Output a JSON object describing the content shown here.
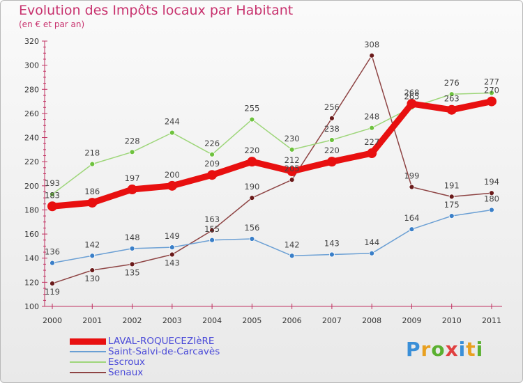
{
  "header": {
    "title": "Evolution des Impôts locaux par Habitant",
    "subtitle": "(en € et par an)"
  },
  "logo": {
    "text": "Proxiti",
    "colors": [
      "#3a8fd8",
      "#e8a020",
      "#5ab030",
      "#e04040",
      "#3a8fd8",
      "#e8a020",
      "#5ab030"
    ]
  },
  "chart_data": {
    "type": "line",
    "title": "Evolution des Impôts locaux par Habitant",
    "subtitle": "(en € et par an)",
    "xlabel": "",
    "ylabel": "",
    "ylim": [
      100,
      320
    ],
    "yticks": [
      100,
      120,
      140,
      160,
      180,
      200,
      220,
      240,
      260,
      280,
      300,
      320
    ],
    "grid": false,
    "legend_position": "bottom-left",
    "x": [
      "2000",
      "2001",
      "2002",
      "2003",
      "2004",
      "2005",
      "2006",
      "2007",
      "2008",
      "2009",
      "2010",
      "2011"
    ],
    "series": [
      {
        "name": "LAVAL-ROQUECEZIèRE",
        "color": "#e81010",
        "marker_color": "#e81010",
        "style": "bold",
        "values": [
          183,
          186,
          197,
          200,
          209,
          220,
          212,
          220,
          227,
          268,
          263,
          270
        ]
      },
      {
        "name": "Saint-Salvi-de-Carcavès",
        "color": "#6a9fd4",
        "marker_color": "#3a7fc8",
        "style": "thin",
        "values": [
          136,
          142,
          148,
          149,
          155,
          156,
          142,
          143,
          144,
          164,
          175,
          180
        ]
      },
      {
        "name": "Escroux",
        "color": "#9ed67a",
        "marker_color": "#6ec23e",
        "style": "thin",
        "values": [
          193,
          218,
          228,
          244,
          226,
          255,
          230,
          238,
          248,
          265,
          276,
          277
        ]
      },
      {
        "name": "Senaux",
        "color": "#8e4444",
        "marker_color": "#6a1a1a",
        "style": "thin",
        "values": [
          119,
          130,
          135,
          143,
          163,
          190,
          205,
          256,
          308,
          199,
          191,
          194
        ]
      }
    ],
    "data_labels": [
      [
        183,
        186,
        197,
        200,
        209,
        220,
        212,
        220,
        227,
        268,
        263,
        270
      ],
      [
        136,
        142,
        148,
        149,
        155,
        156,
        142,
        143,
        144,
        164,
        175,
        180
      ],
      [
        193,
        218,
        228,
        244,
        226,
        255,
        230,
        238,
        248,
        265,
        276,
        277
      ],
      [
        119,
        130,
        135,
        143,
        163,
        190,
        205,
        256,
        308,
        199,
        191,
        194
      ]
    ]
  }
}
